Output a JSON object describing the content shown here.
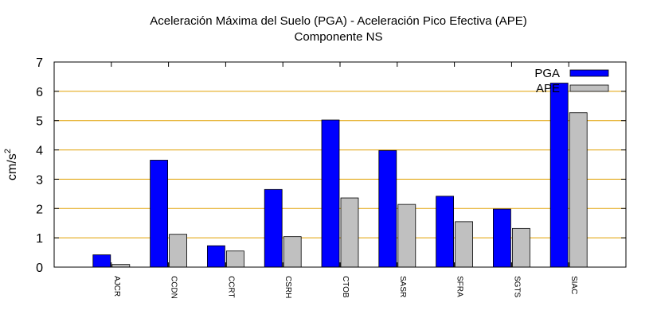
{
  "chart_data": {
    "type": "bar",
    "title": "Aceleración Máxima del Suelo (PGA) -  Aceleración Pico Efectiva (APE)",
    "subtitle": "Componente NS",
    "xlabel": "",
    "ylabel": "cm/s",
    "ylabel_sup": "2",
    "ylim": [
      0,
      7
    ],
    "yticks": [
      "0",
      "1",
      "2",
      "3",
      "4",
      "5",
      "6",
      "7"
    ],
    "grid": true,
    "legend_position": "top-right",
    "categories": [
      "AJCR",
      "CCDN",
      "CCRT",
      "CSRH",
      "CTOB",
      "SASR",
      "SFRA",
      "SGTS",
      "SIAC"
    ],
    "series": [
      {
        "name": "PGA",
        "color": "#0000ff",
        "values": [
          0.42,
          3.65,
          0.73,
          2.65,
          5.02,
          3.98,
          2.42,
          1.98,
          6.28
        ]
      },
      {
        "name": "APE",
        "color": "#c0c0c0",
        "values": [
          0.09,
          1.12,
          0.55,
          1.04,
          2.36,
          2.14,
          1.55,
          1.32,
          5.27
        ]
      }
    ],
    "grid_color": "#e0a000"
  }
}
